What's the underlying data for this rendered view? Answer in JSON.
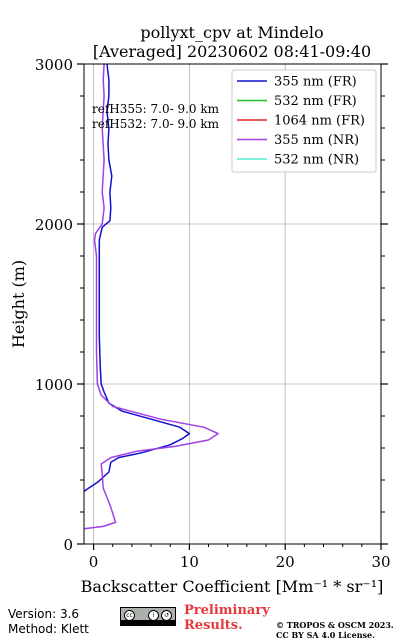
{
  "chart_data": {
    "type": "line",
    "title": "pollyxt_cpv at Mindelo",
    "subtitle": "[Averaged] 20230602 08:41-09:40",
    "xlabel": "Backscatter Coefficient [Mm⁻¹ * sr⁻¹]",
    "ylabel": "Height (m)",
    "xlim": [
      -1,
      30
    ],
    "ylim": [
      0,
      3000
    ],
    "xticks": [
      0,
      10,
      20,
      30
    ],
    "xtick_labels": [
      "0",
      "10",
      "20",
      "30"
    ],
    "yticks": [
      0,
      1000,
      2000,
      3000
    ],
    "ytick_labels": [
      "0",
      "1000",
      "2000",
      "3000"
    ],
    "grid": true,
    "legend_position": "top-right",
    "annotations": [
      "refH355:  7.0- 9.0 km",
      "refH532:  7.0- 9.0 km"
    ],
    "series": [
      {
        "name": "355 nm (FR)",
        "color": "#1010d0",
        "points": [
          [
            -1.0,
            330
          ],
          [
            0.5,
            390
          ],
          [
            1.6,
            450
          ],
          [
            1.8,
            510
          ],
          [
            2.6,
            540
          ],
          [
            5.0,
            570
          ],
          [
            8.0,
            620
          ],
          [
            9.3,
            660
          ],
          [
            10.0,
            690
          ],
          [
            9.0,
            730
          ],
          [
            6.0,
            780
          ],
          [
            3.0,
            830
          ],
          [
            1.6,
            880
          ],
          [
            1.1,
            950
          ],
          [
            0.8,
            1000
          ],
          [
            0.7,
            1100
          ],
          [
            0.6,
            1300
          ],
          [
            0.6,
            1500
          ],
          [
            0.6,
            1700
          ],
          [
            0.6,
            1900
          ],
          [
            0.9,
            1980
          ],
          [
            1.7,
            2020
          ],
          [
            1.8,
            2100
          ],
          [
            1.7,
            2200
          ],
          [
            1.9,
            2300
          ],
          [
            1.6,
            2400
          ],
          [
            1.5,
            2500
          ],
          [
            1.6,
            2600
          ],
          [
            1.4,
            2700
          ],
          [
            1.6,
            2800
          ],
          [
            1.6,
            2900
          ],
          [
            1.4,
            3000
          ]
        ]
      },
      {
        "name": "532 nm (FR)",
        "color": "#20c020",
        "points": []
      },
      {
        "name": "1064 nm (FR)",
        "color": "#e02020",
        "points": []
      },
      {
        "name": "355 nm (NR)",
        "color": "#a040e8",
        "points": [
          [
            -1.0,
            95
          ],
          [
            1.0,
            110
          ],
          [
            2.3,
            135
          ],
          [
            1.8,
            230
          ],
          [
            1.0,
            350
          ],
          [
            0.9,
            440
          ],
          [
            0.8,
            500
          ],
          [
            1.8,
            540
          ],
          [
            4.5,
            580
          ],
          [
            8.5,
            610
          ],
          [
            12.0,
            650
          ],
          [
            13.0,
            690
          ],
          [
            11.5,
            730
          ],
          [
            7.0,
            780
          ],
          [
            2.0,
            860
          ],
          [
            0.8,
            930
          ],
          [
            0.4,
            1000
          ],
          [
            0.3,
            1200
          ],
          [
            0.3,
            1400
          ],
          [
            0.3,
            1600
          ],
          [
            0.3,
            1800
          ],
          [
            0.1,
            1900
          ],
          [
            0.2,
            1940
          ],
          [
            0.9,
            2000
          ],
          [
            1.1,
            2100
          ],
          [
            0.9,
            2200
          ],
          [
            1.1,
            2400
          ],
          [
            0.9,
            2600
          ],
          [
            1.1,
            2800
          ],
          [
            1.0,
            2900
          ],
          [
            1.1,
            3000
          ]
        ]
      },
      {
        "name": "532 nm (NR)",
        "color": "#50f0d0",
        "points": []
      }
    ]
  },
  "footer": {
    "version": "Version: 3.6",
    "method": "Method: Klett",
    "prelim_line1": "Preliminary",
    "prelim_line2": "Results.",
    "copyright_line1": "© TROPOS & OSCM 2023.",
    "copyright_line2": "CC BY SA 4.0 License."
  },
  "badge": {
    "cc": "cc",
    "by": "i",
    "sa": "↺"
  }
}
